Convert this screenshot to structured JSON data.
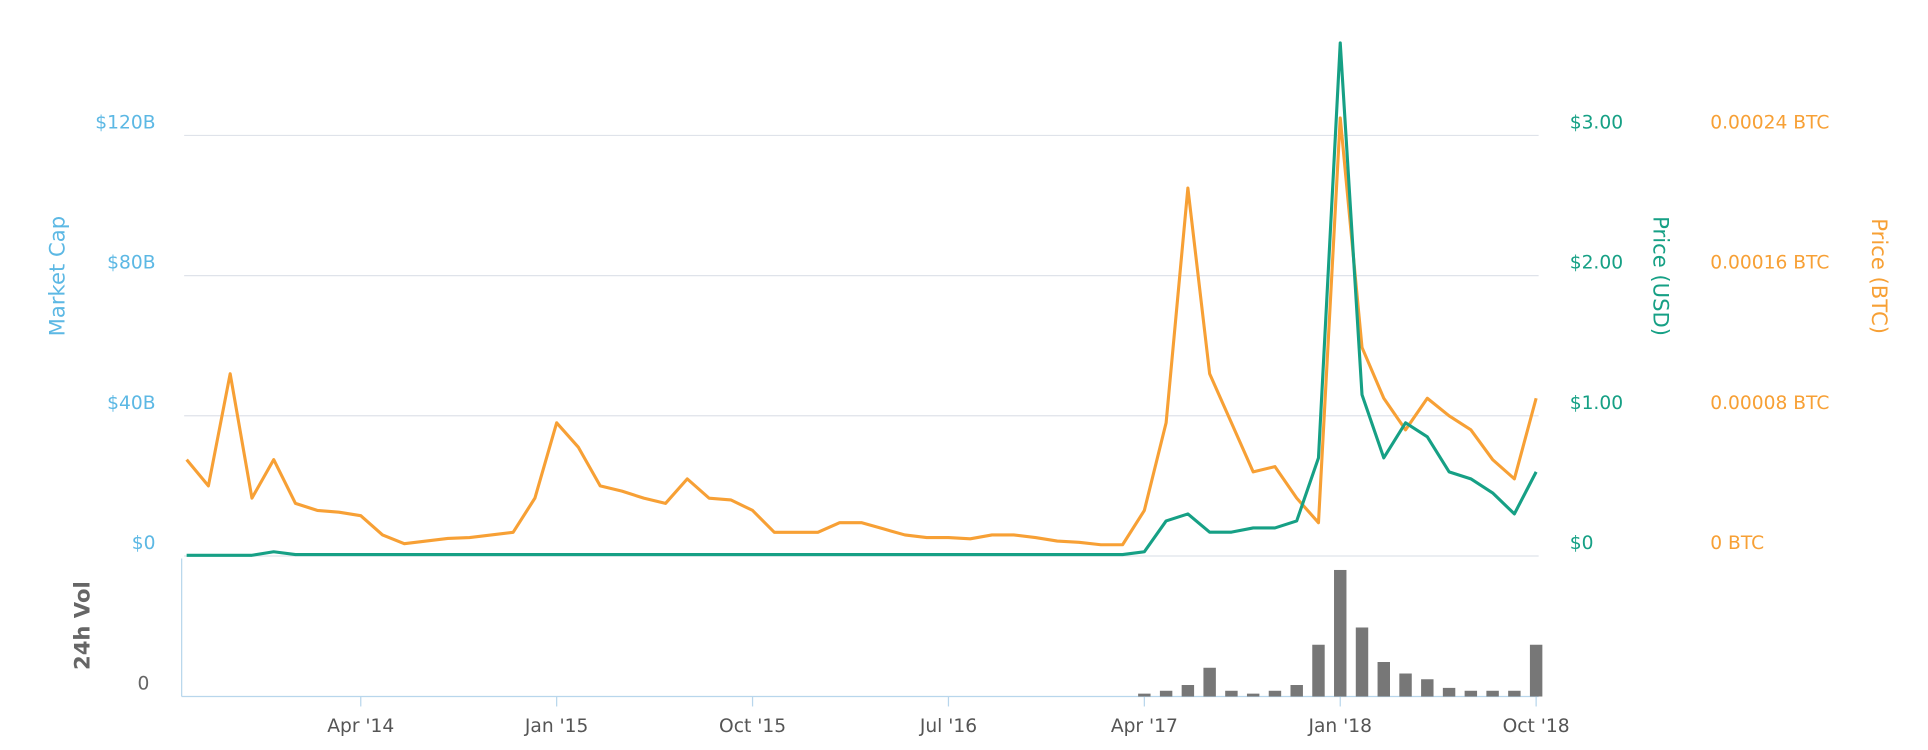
{
  "chart_data": {
    "type": "line",
    "y_label": "Market Cap",
    "x": [
      "2013-08",
      "2013-09",
      "2013-10",
      "2013-11",
      "2013-12",
      "2014-01",
      "2014-02",
      "2014-03",
      "2014-04",
      "2014-05",
      "2014-06",
      "2014-07",
      "2014-08",
      "2014-09",
      "2014-10",
      "2014-11",
      "2014-12",
      "2015-01",
      "2015-02",
      "2015-03",
      "2015-04",
      "2015-05",
      "2015-06",
      "2015-07",
      "2015-08",
      "2015-09",
      "2015-10",
      "2015-11",
      "2015-12",
      "2016-01",
      "2016-02",
      "2016-03",
      "2016-04",
      "2016-05",
      "2016-06",
      "2016-07",
      "2016-08",
      "2016-09",
      "2016-10",
      "2016-11",
      "2016-12",
      "2017-01",
      "2017-02",
      "2017-03",
      "2017-04",
      "2017-05",
      "2017-06",
      "2017-07",
      "2017-08",
      "2017-09",
      "2017-10",
      "2017-11",
      "2017-12",
      "2018-01",
      "2018-02",
      "2018-03",
      "2018-04",
      "2018-05",
      "2018-06",
      "2018-07",
      "2018-08",
      "2018-09",
      "2018-10"
    ],
    "xticks": [
      {
        "value": "2014-04",
        "label": "Apr '14"
      },
      {
        "value": "2015-01",
        "label": "Jan '15"
      },
      {
        "value": "2015-10",
        "label": "Oct '15"
      },
      {
        "value": "2016-07",
        "label": "Jul '16"
      },
      {
        "value": "2017-04",
        "label": "Apr '17"
      },
      {
        "value": "2018-01",
        "label": "Jan '18"
      },
      {
        "value": "2018-10",
        "label": "Oct '18"
      }
    ],
    "ylim": [
      0,
      148000000000
    ],
    "yticks": [
      {
        "value": 0,
        "label": "$0"
      },
      {
        "value": 40000000000,
        "label": "$40B"
      },
      {
        "value": 80000000000,
        "label": "$80B"
      },
      {
        "value": 120000000000,
        "label": "$120B"
      }
    ],
    "y_color": "#5cb8e4",
    "y2lim": [
      0,
      3.7
    ],
    "y2ticks": [
      {
        "value": 0,
        "label": "$0"
      },
      {
        "value": 1,
        "label": "$1.00"
      },
      {
        "value": 2,
        "label": "$2.00"
      },
      {
        "value": 3,
        "label": "$3.00"
      }
    ],
    "y3lim": [
      0,
      0.000296
    ],
    "y3ticks": [
      {
        "value": 0,
        "label": "0 BTC"
      },
      {
        "value": 8e-05,
        "label": "0.00008 BTC"
      },
      {
        "value": 0.00016,
        "label": "0.00016 BTC"
      },
      {
        "value": 0.00024,
        "label": "0.00024 BTC"
      }
    ],
    "volume_lim": [
      0,
      240000000
    ],
    "volume_ticks": [
      0
    ],
    "grid": true,
    "series": [
      {
        "name": "Price (USD)",
        "color": "#16a085",
        "axis": "y2",
        "values": [
          0.005,
          0.005,
          0.005,
          0.005,
          0.03,
          0.01,
          0.01,
          0.01,
          0.01,
          0.01,
          0.01,
          0.01,
          0.01,
          0.01,
          0.01,
          0.01,
          0.01,
          0.01,
          0.01,
          0.01,
          0.01,
          0.01,
          0.01,
          0.01,
          0.01,
          0.01,
          0.01,
          0.01,
          0.01,
          0.01,
          0.01,
          0.01,
          0.01,
          0.01,
          0.01,
          0.01,
          0.01,
          0.01,
          0.01,
          0.01,
          0.01,
          0.01,
          0.01,
          0.01,
          0.03,
          0.25,
          0.3,
          0.17,
          0.17,
          0.2,
          0.2,
          0.25,
          0.7,
          3.66,
          1.15,
          0.7,
          0.95,
          0.85,
          0.6,
          0.55,
          0.45,
          0.3,
          0.6
        ]
      },
      {
        "name": "Price (BTC)",
        "color": "#f7a035",
        "axis": "y3",
        "values": [
          5.5e-05,
          4e-05,
          0.000104,
          3.3e-05,
          5.5e-05,
          3e-05,
          2.6e-05,
          2.5e-05,
          2.3e-05,
          1.2e-05,
          7e-06,
          8.5e-06,
          1e-05,
          1.05e-05,
          1.2e-05,
          1.35e-05,
          3.3e-05,
          7.6e-05,
          6.2e-05,
          4e-05,
          3.7e-05,
          3.3e-05,
          3e-05,
          4.4e-05,
          3.3e-05,
          3.2e-05,
          2.6e-05,
          1.35e-05,
          1.35e-05,
          1.35e-05,
          1.9e-05,
          1.9e-05,
          1.55e-05,
          1.2e-05,
          1.05e-05,
          1.05e-05,
          9.8e-06,
          1.2e-05,
          1.2e-05,
          1.05e-05,
          8.5e-06,
          7.8e-06,
          6.4e-06,
          6.4e-06,
          2.6e-05,
          7.6e-05,
          0.00021,
          0.000104,
          7.6e-05,
          4.8e-05,
          5.1e-05,
          3.3e-05,
          1.9e-05,
          0.00025,
          0.000119,
          9e-05,
          7.2e-05,
          9e-05,
          8e-05,
          7.2e-05,
          5.5e-05,
          4.4e-05,
          9e-05
        ]
      },
      {
        "name": "24h Vol",
        "color": "#777777",
        "axis": "volume",
        "values": [
          0,
          0,
          0,
          0,
          0,
          0,
          0,
          0,
          0,
          0,
          0,
          0,
          0,
          0,
          0,
          0,
          0,
          0,
          0,
          0,
          0,
          0,
          0,
          0,
          0,
          0,
          0,
          0,
          0,
          0,
          0,
          0,
          0,
          0,
          0,
          0,
          0,
          0,
          0,
          0,
          0,
          0,
          0,
          0,
          5000000,
          10000000,
          20000000,
          50000000,
          10000000,
          5000000,
          10000000,
          20000000,
          90000000,
          220000000,
          120000000,
          60000000,
          40000000,
          30000000,
          15000000,
          10000000,
          10000000,
          10000000,
          90000000
        ]
      }
    ]
  }
}
